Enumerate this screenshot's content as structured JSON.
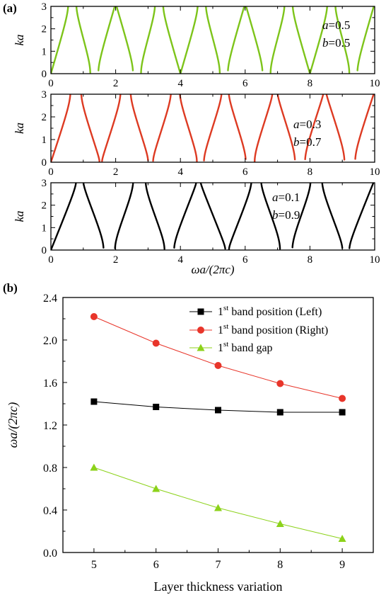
{
  "panel_a": {
    "label": "(a)",
    "xlabel": "ωa/(2πc)",
    "ylabel": "ka",
    "xlim": [
      0,
      10
    ],
    "ylim": [
      0,
      3
    ],
    "xticks": [
      "0",
      "2",
      "4",
      "6",
      "8",
      "10"
    ],
    "yticks": [
      "0",
      "1",
      "2",
      "3"
    ],
    "subplots": [
      {
        "a_label": "a",
        "a_value": "=0.5",
        "b_label": "b",
        "b_value": "=0.5",
        "color": "#7dc41a",
        "w": 0.5
      },
      {
        "a_label": "a",
        "a_value": "=0.3",
        "b_label": "b",
        "b_value": "=0.7",
        "color": "#dd3a22",
        "w": 0.3
      },
      {
        "a_label": "a",
        "a_value": "=0.1",
        "b_label": "b",
        "b_value": "=0.9",
        "color": "#000000",
        "w": 0.1
      }
    ]
  },
  "chart_data": {
    "type": "line",
    "label": "(b)",
    "title": "",
    "xlabel": "Layer thickness variation",
    "ylabel": "ωa/(2πc)",
    "xlim": [
      4.5,
      9.5
    ],
    "ylim": [
      0.0,
      2.4
    ],
    "xticks": [
      "5",
      "6",
      "7",
      "8",
      "9"
    ],
    "yticks": [
      "0.0",
      "0.4",
      "0.8",
      "1.2",
      "1.6",
      "2.0",
      "2.4"
    ],
    "legend_position": "top-right",
    "x": [
      5,
      6,
      7,
      8,
      9
    ],
    "series": [
      {
        "name_pre": "1",
        "name_sup": "st",
        "name_post": " band position (Left)",
        "marker": "square",
        "color": "#000000",
        "line_color": "#000000",
        "values": [
          1.42,
          1.37,
          1.34,
          1.32,
          1.32
        ]
      },
      {
        "name_pre": "1",
        "name_sup": "st",
        "name_post": " band position (Right)",
        "marker": "circle",
        "color": "#e8352a",
        "line_color": "#e8352a",
        "values": [
          2.22,
          1.97,
          1.76,
          1.59,
          1.45
        ]
      },
      {
        "name_pre": "1",
        "name_sup": "st",
        "name_post": " band gap",
        "marker": "triangle",
        "color": "#8cd21a",
        "line_color": "#8cd21a",
        "values": [
          0.8,
          0.6,
          0.42,
          0.27,
          0.13
        ]
      }
    ]
  }
}
